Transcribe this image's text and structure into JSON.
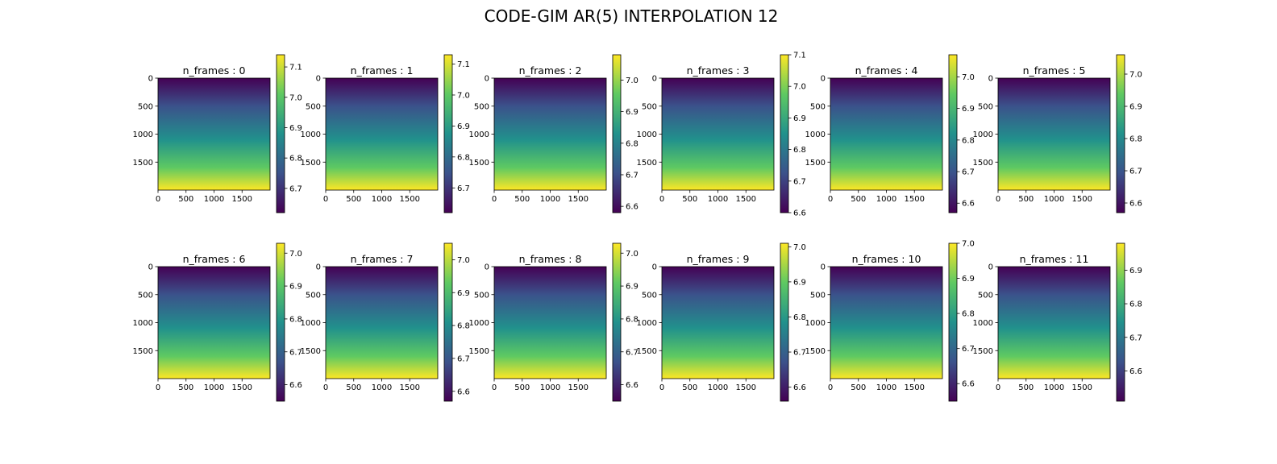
{
  "figure": {
    "title": "CODE-GIM AR(5) INTERPOLATION 12"
  },
  "colormap": {
    "name": "viridis",
    "stops": [
      "#440154",
      "#3b528b",
      "#21918c",
      "#5ec962",
      "#fde725"
    ]
  },
  "chart_data": [
    {
      "type": "heatmap",
      "title": "n_frames : 0",
      "xticks": [
        "0",
        "500",
        "1000",
        "1500"
      ],
      "yticks": [
        "0",
        "500",
        "1000",
        "1500"
      ],
      "colorbar": {
        "range": [
          6.62,
          7.14
        ],
        "ticks": [
          "6.7",
          "6.8",
          "6.9",
          "7.0",
          "7.1"
        ]
      }
    },
    {
      "type": "heatmap",
      "title": "n_frames : 1",
      "xticks": [
        "0",
        "500",
        "1000",
        "1500"
      ],
      "yticks": [
        "0",
        "500",
        "1000",
        "1500"
      ],
      "colorbar": {
        "range": [
          6.62,
          7.13
        ],
        "ticks": [
          "6.7",
          "6.8",
          "6.9",
          "7.0",
          "7.1"
        ]
      }
    },
    {
      "type": "heatmap",
      "title": "n_frames : 2",
      "xticks": [
        "0",
        "500",
        "1000",
        "1500"
      ],
      "yticks": [
        "0",
        "500",
        "1000",
        "1500"
      ],
      "colorbar": {
        "range": [
          6.58,
          7.08
        ],
        "ticks": [
          "6.6",
          "6.7",
          "6.8",
          "6.9",
          "7.0"
        ]
      }
    },
    {
      "type": "heatmap",
      "title": "n_frames : 3",
      "xticks": [
        "0",
        "500",
        "1000",
        "1500"
      ],
      "yticks": [
        "0",
        "500",
        "1000",
        "1500"
      ],
      "colorbar": {
        "range": [
          6.6,
          7.1
        ],
        "ticks": [
          "6.6",
          "6.7",
          "6.8",
          "6.9",
          "7.0",
          "7.1"
        ]
      }
    },
    {
      "type": "heatmap",
      "title": "n_frames : 4",
      "xticks": [
        "0",
        "500",
        "1000",
        "1500"
      ],
      "yticks": [
        "0",
        "500",
        "1000",
        "1500"
      ],
      "colorbar": {
        "range": [
          6.57,
          7.07
        ],
        "ticks": [
          "6.6",
          "6.7",
          "6.8",
          "6.9",
          "7.0"
        ]
      }
    },
    {
      "type": "heatmap",
      "title": "n_frames : 5",
      "xticks": [
        "0",
        "500",
        "1000",
        "1500"
      ],
      "yticks": [
        "0",
        "500",
        "1000",
        "1500"
      ],
      "colorbar": {
        "range": [
          6.57,
          7.06
        ],
        "ticks": [
          "6.6",
          "6.7",
          "6.8",
          "6.9",
          "7.0"
        ]
      }
    },
    {
      "type": "heatmap",
      "title": "n_frames : 6",
      "xticks": [
        "0",
        "500",
        "1000",
        "1500"
      ],
      "yticks": [
        "0",
        "500",
        "1000",
        "1500"
      ],
      "colorbar": {
        "range": [
          6.55,
          7.03
        ],
        "ticks": [
          "6.6",
          "6.7",
          "6.8",
          "6.9",
          "7.0"
        ]
      }
    },
    {
      "type": "heatmap",
      "title": "n_frames : 7",
      "xticks": [
        "0",
        "500",
        "1000",
        "1500"
      ],
      "yticks": [
        "0",
        "500",
        "1000",
        "1500"
      ],
      "colorbar": {
        "range": [
          6.57,
          7.05
        ],
        "ticks": [
          "6.6",
          "6.7",
          "6.8",
          "6.9",
          "7.0"
        ]
      }
    },
    {
      "type": "heatmap",
      "title": "n_frames : 8",
      "xticks": [
        "0",
        "500",
        "1000",
        "1500"
      ],
      "yticks": [
        "0",
        "500",
        "1000",
        "1500"
      ],
      "colorbar": {
        "range": [
          6.55,
          7.03
        ],
        "ticks": [
          "6.6",
          "6.7",
          "6.8",
          "6.9",
          "7.0"
        ]
      }
    },
    {
      "type": "heatmap",
      "title": "n_frames : 9",
      "xticks": [
        "0",
        "500",
        "1000",
        "1500"
      ],
      "yticks": [
        "0",
        "500",
        "1000",
        "1500"
      ],
      "colorbar": {
        "range": [
          6.56,
          7.01
        ],
        "ticks": [
          "6.6",
          "6.7",
          "6.8",
          "6.9",
          "7.0"
        ]
      }
    },
    {
      "type": "heatmap",
      "title": "n_frames : 10",
      "xticks": [
        "0",
        "500",
        "1000",
        "1500"
      ],
      "yticks": [
        "0",
        "500",
        "1000",
        "1500"
      ],
      "colorbar": {
        "range": [
          6.55,
          7.0
        ],
        "ticks": [
          "6.6",
          "6.7",
          "6.8",
          "6.9",
          "7.0"
        ]
      }
    },
    {
      "type": "heatmap",
      "title": "n_frames : 11",
      "xticks": [
        "0",
        "500",
        "1000",
        "1500"
      ],
      "yticks": [
        "0",
        "500",
        "1000",
        "1500"
      ],
      "colorbar": {
        "range": [
          6.51,
          6.98
        ],
        "ticks": [
          "6.6",
          "6.7",
          "6.8",
          "6.9"
        ]
      }
    }
  ]
}
